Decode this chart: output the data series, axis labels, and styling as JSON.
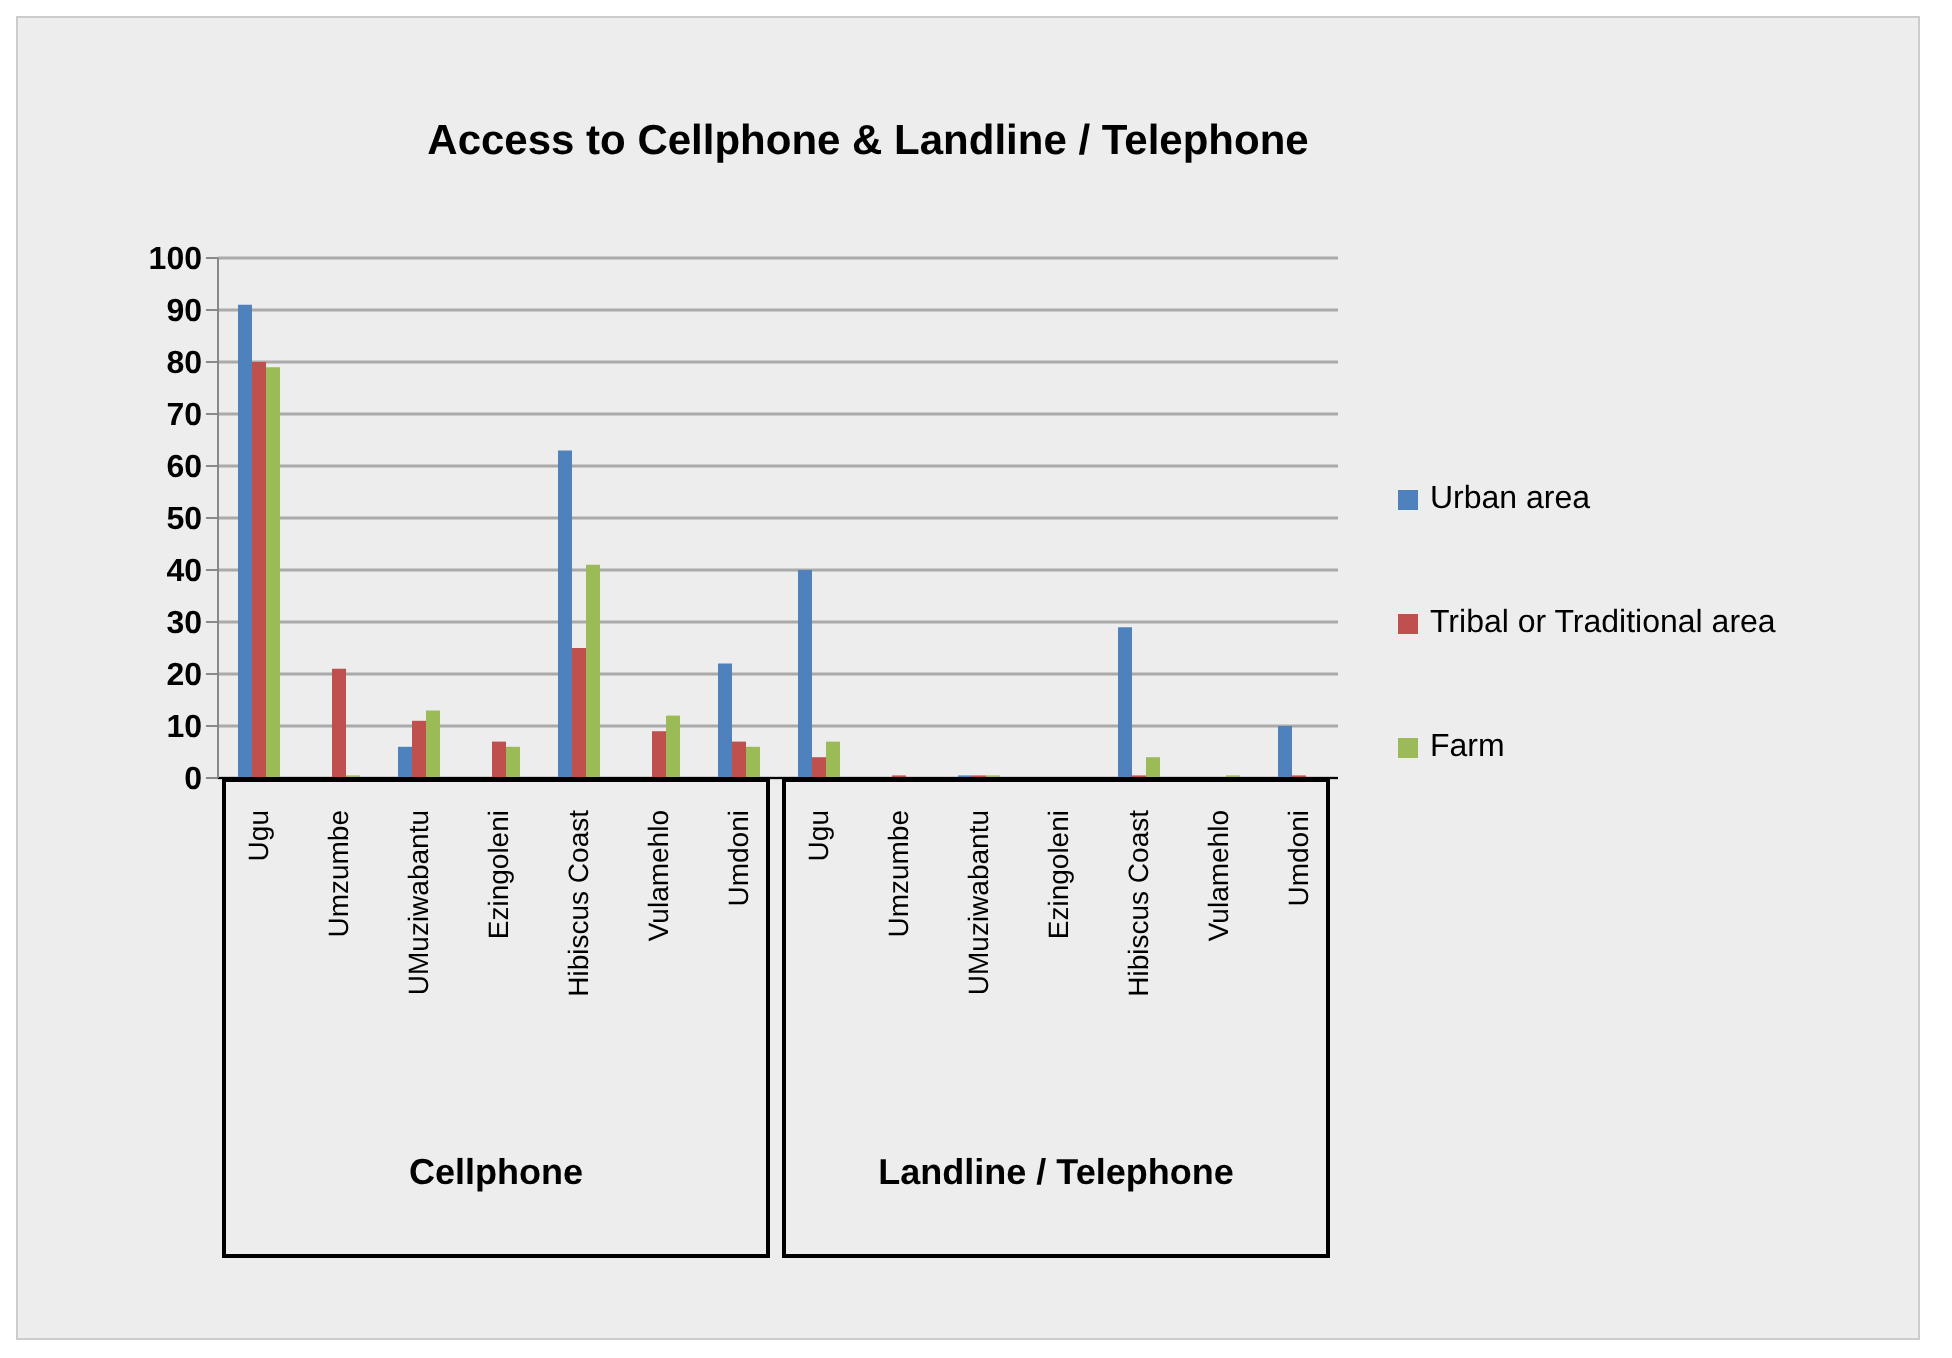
{
  "chart_data": {
    "type": "bar",
    "title": "Access to Cellphone & Landline / Telephone",
    "categories": [
      "Ugu",
      "Umzumbe",
      "UMuziwabantu",
      "Ezingoleni",
      "Hibiscus Coast",
      "Vulamehlo",
      "Umdoni",
      "Ugu",
      "Umzumbe",
      "UMuziwabantu",
      "Ezingoleni",
      "Hibiscus Coast",
      "Vulamehlo",
      "Umdoni"
    ],
    "series": [
      {
        "name": "Urban area",
        "color": "#4f81bd",
        "values": [
          91,
          0,
          6,
          0,
          63,
          0,
          22,
          40,
          0,
          0.5,
          0,
          29,
          0,
          10
        ]
      },
      {
        "name": "Tribal or Traditional area",
        "color": "#c0504d",
        "values": [
          80,
          21,
          11,
          7,
          25,
          9,
          7,
          4,
          0.5,
          0.5,
          0,
          0.5,
          0,
          0.5
        ]
      },
      {
        "name": "Farm",
        "color": "#9bbb59",
        "values": [
          79,
          0.5,
          13,
          6,
          41,
          12,
          6,
          7,
          0,
          0.5,
          0,
          4,
          0.5,
          0
        ]
      }
    ],
    "annotations": [
      "Cellphone",
      "Landline / Telephone"
    ],
    "ylim": [
      0,
      100
    ],
    "yticks": [
      0,
      10,
      20,
      30,
      40,
      50,
      60,
      70,
      80,
      90,
      100
    ],
    "grid": "y",
    "legend": "right"
  }
}
